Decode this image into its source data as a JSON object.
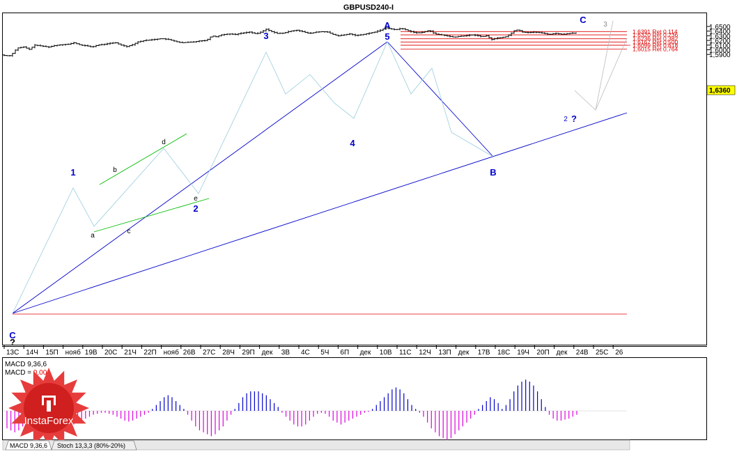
{
  "chart_data": {
    "type": "ohlc",
    "title": "GBPUSD240-I",
    "symbol": "GBPUSD",
    "timeframe": "H4",
    "y_ticks": [
      "1,6500",
      "1,6400",
      "1,6300",
      "1,6200",
      "1,6100",
      "1,6000",
      "1,5900"
    ],
    "y_range": [
      1.583,
      1.66
    ],
    "current_price": "1,6360",
    "x_labels": [
      "13С",
      "14Ч",
      "15П",
      "нояб",
      "19В",
      "20С",
      "21Ч",
      "22П",
      "нояб",
      "26В",
      "27С",
      "28Ч",
      "29П",
      "дек",
      "3В",
      "4С",
      "5Ч",
      "6П",
      "дек",
      "10В",
      "11С",
      "12Ч",
      "13П",
      "дек",
      "17В",
      "18С",
      "19Ч",
      "20П",
      "дек",
      "24В",
      "25С",
      "26"
    ],
    "fib_levels": [
      {
        "label": "1,6391 Ret 0,114",
        "value": 1.6391
      },
      {
        "label": "1,6320 Ret 0,236",
        "value": 1.632
      },
      {
        "label": "1,6236 Ret 0,382",
        "value": 1.6236
      },
      {
        "label": "1,6167 Ret 0,500",
        "value": 1.6167
      },
      {
        "label": "1,6099 Ret 0,618",
        "value": 1.6099
      },
      {
        "label": "1,6015 Ret 0,764",
        "value": 1.6015
      }
    ],
    "wave_labels": [
      {
        "text": "1",
        "major": true,
        "color": "#0000cc"
      },
      {
        "text": "2",
        "major": true,
        "color": "#0000cc"
      },
      {
        "text": "3",
        "major": true,
        "color": "#0000cc"
      },
      {
        "text": "4",
        "major": true,
        "color": "#0000cc"
      },
      {
        "text": "5",
        "major": true,
        "color": "#0000cc"
      },
      {
        "text": "A",
        "major": true,
        "color": "#0000cc"
      },
      {
        "text": "B",
        "major": true,
        "color": "#0000cc"
      },
      {
        "text": "C",
        "major": true,
        "color": "#0000cc"
      },
      {
        "text": "C",
        "major": true,
        "color": "#0000cc"
      },
      {
        "text": "?",
        "major": true,
        "color": "#000000"
      },
      {
        "text": "?",
        "major": true,
        "color": "#0000cc"
      },
      {
        "text": "a",
        "major": false,
        "color": "#000000"
      },
      {
        "text": "b",
        "major": false,
        "color": "#000000"
      },
      {
        "text": "c",
        "major": false,
        "color": "#000000"
      },
      {
        "text": "d",
        "major": false,
        "color": "#000000"
      },
      {
        "text": "e",
        "major": false,
        "color": "#000000"
      },
      {
        "text": "2",
        "major": false,
        "color": "#0000cc"
      },
      {
        "text": "3",
        "major": false,
        "color": "#888888"
      }
    ],
    "indicator": {
      "name": "MACD 9,36,6",
      "value_label": "MACD = ",
      "value": "0,00",
      "tabs": [
        "MACD 9,36,6",
        "Stoch 13,3,3 (80%-20%)"
      ],
      "histogram": [
        -0.9,
        -1.0,
        -1.1,
        -1.0,
        -0.8,
        -0.5,
        -0.3,
        -0.1,
        -0.2,
        -0.5,
        -0.8,
        -1.0,
        -1.2,
        -1.3,
        -1.2,
        -1.0,
        -0.8,
        -0.7,
        -0.6,
        -0.5,
        -0.4,
        -0.3,
        -0.2,
        -0.15,
        -0.1,
        -0.1,
        -0.15,
        -0.2,
        -0.3,
        -0.4,
        -0.5,
        -0.55,
        -0.5,
        -0.4,
        -0.3,
        -0.2,
        -0.1,
        0.1,
        0.3,
        0.5,
        0.7,
        0.8,
        0.7,
        0.5,
        0.3,
        0.1,
        -0.2,
        -0.5,
        -0.8,
        -1.0,
        -1.1,
        -1.2,
        -1.3,
        -1.2,
        -1.0,
        -0.8,
        -0.5,
        -0.2,
        0.1,
        0.4,
        0.7,
        0.9,
        1.0,
        1.0,
        1.0,
        0.9,
        0.8,
        0.6,
        0.4,
        0.2,
        -0.1,
        -0.3,
        -0.5,
        -0.7,
        -0.8,
        -0.8,
        -0.7,
        -0.5,
        -0.3,
        -0.15,
        -0.1,
        -0.15,
        -0.3,
        -0.5,
        -0.6,
        -0.7,
        -0.6,
        -0.5,
        -0.4,
        -0.3,
        -0.2,
        -0.1,
        -0.05,
        0.1,
        0.3,
        0.5,
        0.7,
        0.9,
        1.1,
        1.2,
        1.1,
        0.9,
        0.6,
        0.3,
        0.1,
        -0.1,
        -0.3,
        -0.6,
        -0.9,
        -1.1,
        -1.3,
        -1.4,
        -1.5,
        -1.4,
        -1.2,
        -1.0,
        -0.8,
        -0.6,
        -0.4,
        -0.2,
        0.1,
        0.3,
        0.5,
        0.7,
        0.6,
        0.4,
        0.1,
        0.3,
        0.6,
        1.0,
        1.3,
        1.5,
        1.6,
        1.5,
        1.3,
        1.0,
        0.6,
        0.2,
        -0.2,
        -0.4,
        -0.5,
        -0.5,
        -0.45,
        -0.4,
        -0.3,
        -0.2
      ]
    }
  },
  "branding": {
    "logo_text": "InstaForex"
  }
}
